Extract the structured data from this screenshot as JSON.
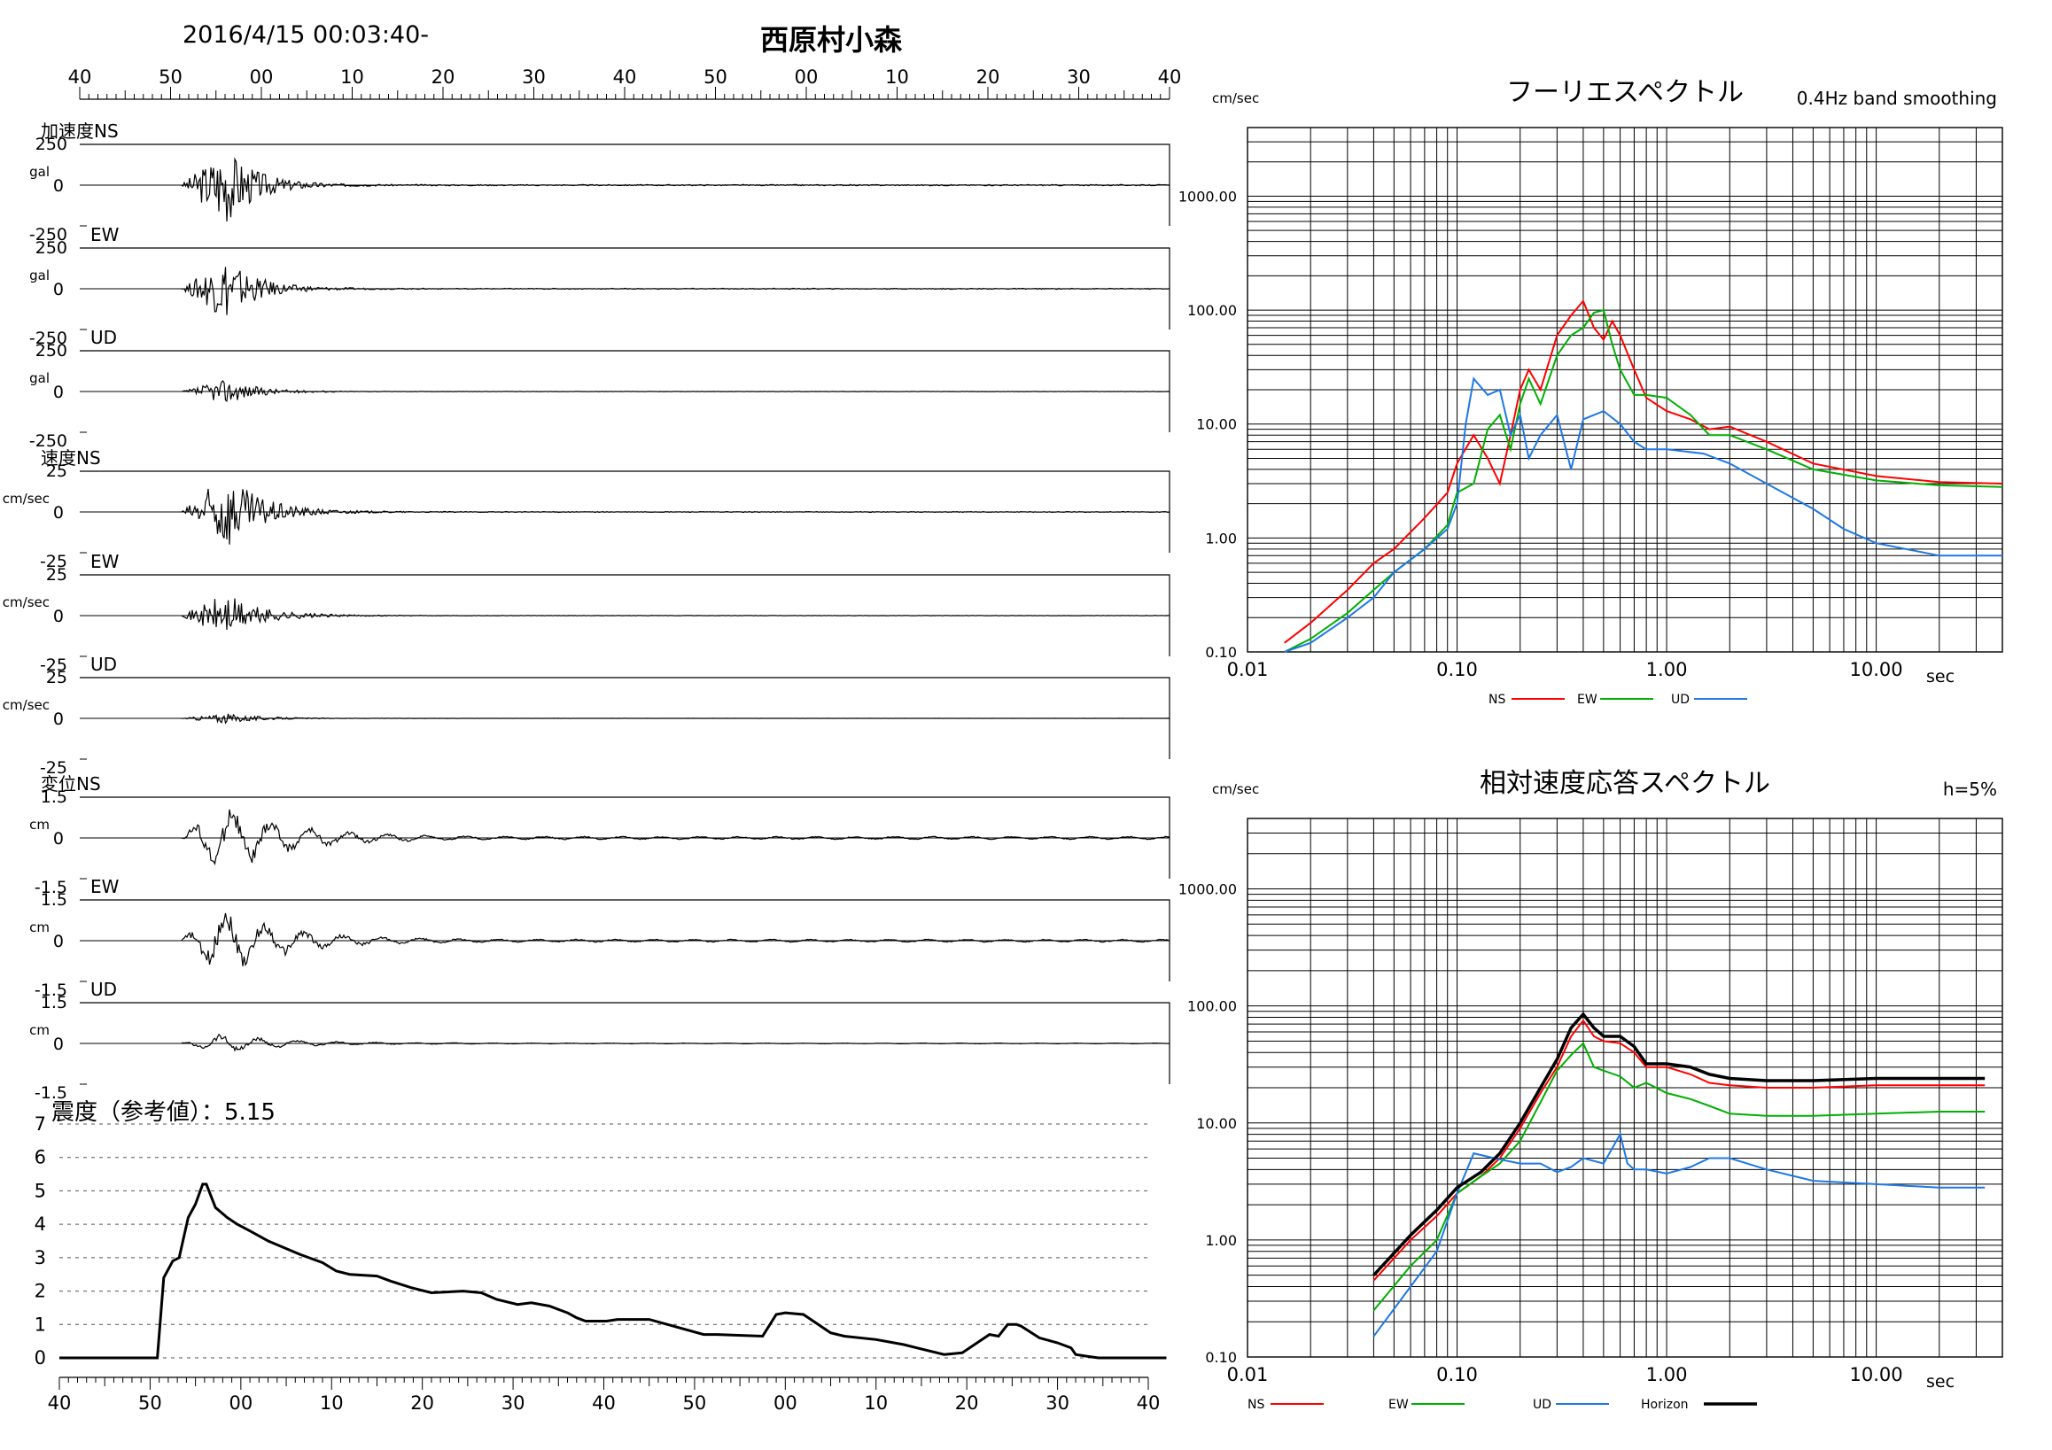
{
  "header": {
    "datetime": "2016/4/15 00:03:40-",
    "station": "西原村小森"
  },
  "time_ticks": [
    "40",
    "50",
    "00",
    "10",
    "20",
    "30",
    "40",
    "50",
    "00",
    "10",
    "20",
    "30",
    "40"
  ],
  "waveform_section": {
    "panels": [
      {
        "group_label": "加速度NS",
        "component": "",
        "unit": "gal",
        "top": "250",
        "mid": "0",
        "bottom": "-250"
      },
      {
        "group_label": "",
        "component": "EW",
        "unit": "gal",
        "top": "250",
        "mid": "0",
        "bottom": "-250"
      },
      {
        "group_label": "",
        "component": "UD",
        "unit": "gal",
        "top": "250",
        "mid": "0",
        "bottom": "-250"
      },
      {
        "group_label": "速度NS",
        "component": "",
        "unit": "cm/sec",
        "top": "25",
        "mid": "0",
        "bottom": "-25"
      },
      {
        "group_label": "",
        "component": "EW",
        "unit": "cm/sec",
        "top": "25",
        "mid": "0",
        "bottom": "-25"
      },
      {
        "group_label": "",
        "component": "UD",
        "unit": "cm/sec",
        "top": "25",
        "mid": "0",
        "bottom": "-25"
      },
      {
        "group_label": "変位NS",
        "component": "",
        "unit": "cm",
        "top": "1.5",
        "mid": "0",
        "bottom": "-1.5"
      },
      {
        "group_label": "",
        "component": "EW",
        "unit": "cm",
        "top": "1.5",
        "mid": "0",
        "bottom": "-1.5"
      },
      {
        "group_label": "",
        "component": "UD",
        "unit": "cm",
        "top": "1.5",
        "mid": "0",
        "bottom": "-1.5"
      }
    ]
  },
  "chart_data": [
    {
      "type": "line",
      "title": "震度（参考値）：5.15",
      "xlabel": "",
      "ylabel": "",
      "x_tick_labels": [
        "40",
        "50",
        "00",
        "10",
        "20",
        "30",
        "40",
        "50",
        "00",
        "10",
        "20",
        "30",
        "40"
      ],
      "ylim": [
        0,
        7
      ],
      "y_ticks": [
        "0",
        "1",
        "2",
        "3",
        "4",
        "5",
        "6",
        "7"
      ],
      "grid": "dashed horizontal",
      "series": [
        {
          "color": "#000000",
          "x": [
            0,
            10.8,
            11.5,
            12.5,
            13.2,
            14.2,
            15,
            15.8,
            16.2,
            17.2,
            18.5,
            19.6,
            21,
            23,
            26.5,
            29,
            30.5,
            32,
            35,
            36.5,
            38.8,
            41,
            44.5,
            46.5,
            48.2,
            50.5,
            52,
            54,
            56,
            57,
            58,
            60.3,
            61.5,
            65,
            71,
            72.5,
            77.5,
            79,
            80,
            82,
            85,
            86.5,
            90,
            93,
            94.5,
            97.5,
            99.5,
            102.5,
            103.5,
            104.5,
            105.5,
            106,
            108,
            110,
            111.5,
            112,
            113.2,
            114.5,
            118,
            121,
            121.5,
            122
          ],
          "y": [
            0,
            0,
            2.4,
            2.9,
            3.0,
            4.2,
            4.6,
            5.2,
            5.2,
            4.5,
            4.2,
            4.0,
            3.8,
            3.5,
            3.1,
            2.85,
            2.6,
            2.5,
            2.45,
            2.3,
            2.1,
            1.95,
            2.0,
            1.95,
            1.75,
            1.6,
            1.65,
            1.55,
            1.35,
            1.2,
            1.1,
            1.1,
            1.15,
            1.15,
            0.7,
            0.7,
            0.65,
            1.3,
            1.35,
            1.3,
            0.75,
            0.65,
            0.55,
            0.4,
            0.3,
            0.1,
            0.15,
            0.7,
            0.65,
            1.0,
            1.0,
            0.95,
            0.6,
            0.45,
            0.3,
            0.1,
            0.05,
            0,
            0,
            0,
            0,
            0
          ]
        }
      ]
    },
    {
      "type": "line",
      "title": "フーリエスペクトル",
      "subtitle": "0.4Hz band smoothing",
      "xlabel": "sec",
      "ylabel": "cm/sec",
      "x_scale": "log",
      "y_scale": "log",
      "xlim": [
        0.01,
        40
      ],
      "ylim": [
        0.1,
        4000
      ],
      "x_ticks": [
        "0.01",
        "0.10",
        "1.00",
        "10.00"
      ],
      "y_ticks": [
        "0.10",
        "1.00",
        "10.00",
        "100.00",
        "1000.00"
      ],
      "series": [
        {
          "name": "NS",
          "color": "#ff0000",
          "x": [
            0.015,
            0.02,
            0.03,
            0.04,
            0.05,
            0.07,
            0.09,
            0.1,
            0.12,
            0.14,
            0.16,
            0.18,
            0.2,
            0.22,
            0.25,
            0.3,
            0.35,
            0.4,
            0.45,
            0.5,
            0.55,
            0.6,
            0.7,
            0.8,
            1.0,
            1.3,
            1.6,
            2.0,
            3.0,
            5.0,
            10,
            20,
            40
          ],
          "y": [
            0.12,
            0.18,
            0.35,
            0.6,
            0.8,
            1.5,
            2.5,
            4.5,
            8,
            5,
            3,
            8,
            20,
            30,
            20,
            60,
            90,
            120,
            70,
            55,
            80,
            60,
            30,
            17,
            13,
            11,
            9,
            9.5,
            7,
            4.5,
            3.5,
            3.1,
            3.0
          ]
        },
        {
          "name": "EW",
          "color": "#00b000",
          "x": [
            0.015,
            0.02,
            0.03,
            0.04,
            0.05,
            0.07,
            0.09,
            0.1,
            0.12,
            0.14,
            0.16,
            0.18,
            0.2,
            0.22,
            0.25,
            0.3,
            0.35,
            0.4,
            0.45,
            0.5,
            0.55,
            0.6,
            0.7,
            0.8,
            1.0,
            1.3,
            1.6,
            2.0,
            3.0,
            5.0,
            10,
            20,
            40
          ],
          "y": [
            0.1,
            0.13,
            0.22,
            0.35,
            0.5,
            0.8,
            1.3,
            2.5,
            3,
            9,
            12,
            6,
            15,
            25,
            15,
            40,
            60,
            70,
            95,
            100,
            50,
            30,
            18,
            18,
            17,
            12,
            8,
            8,
            6,
            4,
            3.2,
            2.9,
            2.8
          ]
        },
        {
          "name": "UD",
          "color": "#1e78e6",
          "x": [
            0.015,
            0.02,
            0.03,
            0.04,
            0.05,
            0.07,
            0.09,
            0.1,
            0.11,
            0.12,
            0.14,
            0.16,
            0.18,
            0.2,
            0.22,
            0.25,
            0.3,
            0.35,
            0.4,
            0.5,
            0.6,
            0.7,
            0.8,
            1.0,
            1.5,
            2.0,
            3.0,
            5.0,
            7.0,
            10,
            20,
            40
          ],
          "y": [
            0.1,
            0.12,
            0.2,
            0.3,
            0.5,
            0.8,
            1.2,
            2.0,
            10,
            25,
            18,
            20,
            8,
            12,
            5,
            8,
            12,
            4,
            11,
            13,
            10,
            7,
            6,
            6,
            5.5,
            4.5,
            3,
            1.8,
            1.2,
            0.9,
            0.7,
            0.7
          ]
        }
      ]
    },
    {
      "type": "line",
      "title": "相対速度応答スペクトル",
      "subtitle": "h=5%",
      "xlabel": "sec",
      "ylabel": "cm/sec",
      "x_scale": "log",
      "y_scale": "log",
      "xlim": [
        0.01,
        40
      ],
      "ylim": [
        0.1,
        4000
      ],
      "x_ticks": [
        "0.01",
        "0.10",
        "1.00",
        "10.00"
      ],
      "y_ticks": [
        "0.10",
        "1.00",
        "10.00",
        "100.00",
        "1000.00"
      ],
      "series": [
        {
          "name": "NS",
          "color": "#ff0000",
          "x": [
            0.04,
            0.06,
            0.08,
            0.1,
            0.13,
            0.16,
            0.2,
            0.25,
            0.3,
            0.35,
            0.4,
            0.45,
            0.5,
            0.6,
            0.7,
            0.8,
            1.0,
            1.3,
            1.6,
            2.0,
            3.0,
            5.0,
            10,
            20,
            33
          ],
          "y": [
            0.45,
            1.0,
            1.6,
            2.5,
            3.5,
            5,
            9,
            18,
            30,
            55,
            75,
            55,
            50,
            48,
            40,
            30,
            30,
            26,
            22,
            21,
            20,
            20,
            21,
            21,
            21
          ]
        },
        {
          "name": "EW",
          "color": "#00b000",
          "x": [
            0.04,
            0.06,
            0.08,
            0.1,
            0.13,
            0.16,
            0.2,
            0.25,
            0.3,
            0.35,
            0.4,
            0.45,
            0.5,
            0.6,
            0.7,
            0.8,
            1.0,
            1.3,
            1.6,
            2.0,
            3.0,
            5.0,
            10,
            20,
            33
          ],
          "y": [
            0.25,
            0.6,
            1.0,
            2.5,
            3.5,
            4.5,
            7,
            15,
            28,
            38,
            48,
            30,
            28,
            25,
            20,
            22,
            18,
            16,
            14,
            12,
            11.5,
            11.5,
            12,
            12.5,
            12.5
          ]
        },
        {
          "name": "UD",
          "color": "#1e78e6",
          "x": [
            0.04,
            0.06,
            0.08,
            0.1,
            0.12,
            0.15,
            0.2,
            0.25,
            0.3,
            0.35,
            0.4,
            0.5,
            0.6,
            0.65,
            0.7,
            0.8,
            1.0,
            1.3,
            1.6,
            2.0,
            3.0,
            5.0,
            10,
            20,
            33
          ],
          "y": [
            0.15,
            0.4,
            0.8,
            2.5,
            5.5,
            5,
            4.5,
            4.5,
            3.8,
            4.2,
            5,
            4.5,
            8,
            4.5,
            4,
            4,
            3.7,
            4.2,
            5,
            5,
            4,
            3.2,
            3.0,
            2.8,
            2.8
          ]
        },
        {
          "name": "Horizon",
          "color": "#000000",
          "x": [
            0.04,
            0.06,
            0.08,
            0.1,
            0.13,
            0.16,
            0.2,
            0.25,
            0.3,
            0.35,
            0.4,
            0.45,
            0.5,
            0.6,
            0.7,
            0.8,
            1.0,
            1.3,
            1.6,
            2.0,
            3.0,
            5.0,
            10,
            20,
            33
          ],
          "y": [
            0.5,
            1.1,
            1.8,
            2.8,
            3.8,
            5.5,
            10,
            20,
            35,
            65,
            85,
            65,
            55,
            55,
            45,
            32,
            32,
            30,
            26,
            24,
            23,
            23,
            24,
            24,
            24
          ]
        }
      ]
    }
  ]
}
